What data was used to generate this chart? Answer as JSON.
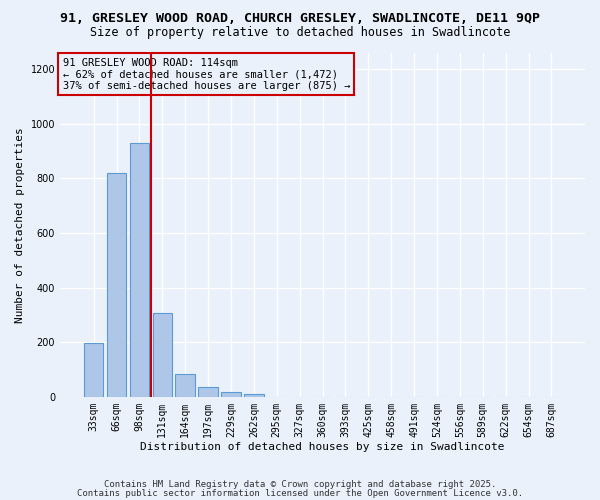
{
  "title": "91, GRESLEY WOOD ROAD, CHURCH GRESLEY, SWADLINCOTE, DE11 9QP",
  "subtitle": "Size of property relative to detached houses in Swadlincote",
  "xlabel": "Distribution of detached houses by size in Swadlincote",
  "ylabel": "Number of detached properties",
  "bar_labels": [
    "33sqm",
    "66sqm",
    "98sqm",
    "131sqm",
    "164sqm",
    "197sqm",
    "229sqm",
    "262sqm",
    "295sqm",
    "327sqm",
    "360sqm",
    "393sqm",
    "425sqm",
    "458sqm",
    "491sqm",
    "524sqm",
    "556sqm",
    "589sqm",
    "622sqm",
    "654sqm",
    "687sqm"
  ],
  "bar_values": [
    197,
    820,
    930,
    305,
    83,
    35,
    18,
    10,
    0,
    0,
    0,
    0,
    0,
    0,
    0,
    0,
    0,
    0,
    0,
    0,
    0
  ],
  "bar_color": "#aec7e8",
  "bar_edge_color": "#5b9bd5",
  "background_color": "#eaf1fb",
  "grid_color": "#ffffff",
  "vline_color": "#cc0000",
  "annotation_line1": "91 GRESLEY WOOD ROAD: 114sqm",
  "annotation_line2": "← 62% of detached houses are smaller (1,472)",
  "annotation_line3": "37% of semi-detached houses are larger (875) →",
  "annotation_box_color": "#cc0000",
  "ylim": [
    0,
    1260
  ],
  "yticks": [
    0,
    200,
    400,
    600,
    800,
    1000,
    1200
  ],
  "footnote1": "Contains HM Land Registry data © Crown copyright and database right 2025.",
  "footnote2": "Contains public sector information licensed under the Open Government Licence v3.0.",
  "title_fontsize": 9.5,
  "subtitle_fontsize": 8.5,
  "axis_label_fontsize": 8,
  "tick_fontsize": 7,
  "annotation_fontsize": 7.5,
  "footnote_fontsize": 6.5
}
